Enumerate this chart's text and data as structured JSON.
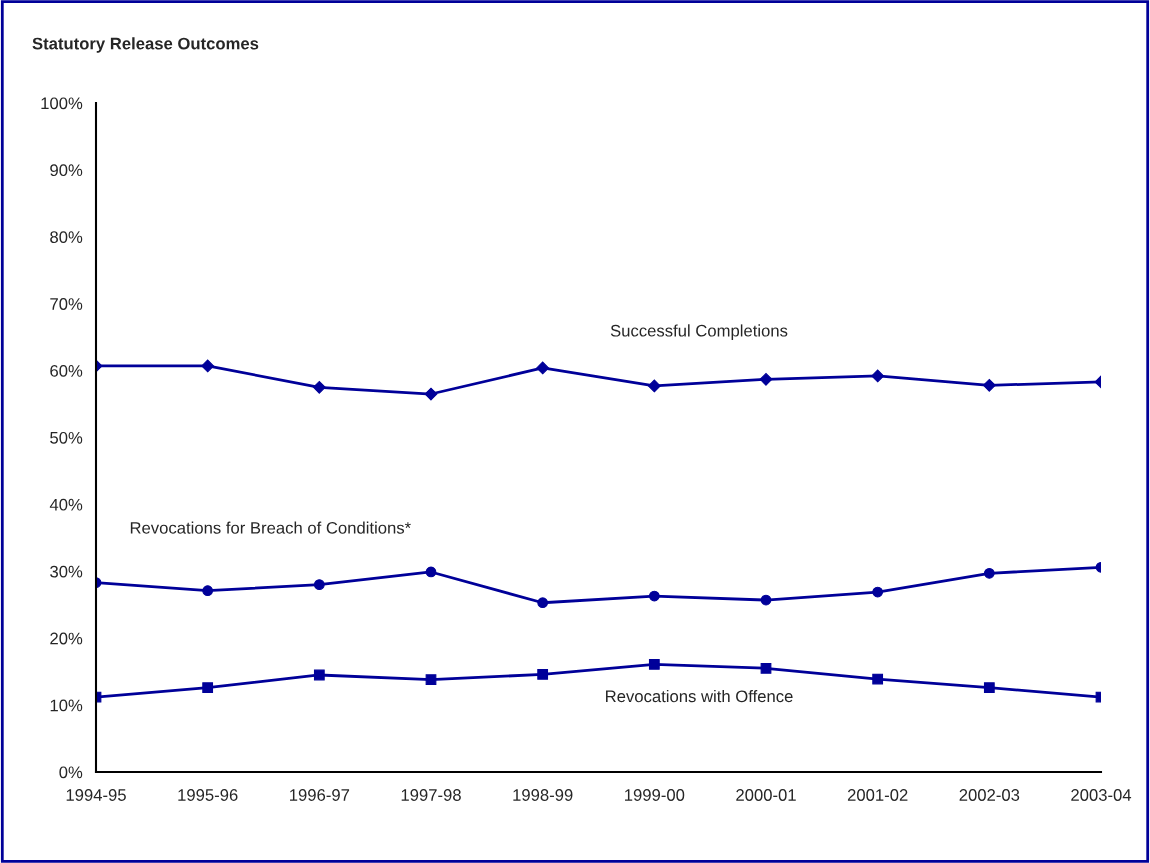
{
  "chart_data": {
    "type": "line",
    "title": "Statutory Release Outcomes",
    "categories": [
      "1994-95",
      "1995-96",
      "1996-97",
      "1997-98",
      "1998-99",
      "1999-00",
      "2000-01",
      "2001-02",
      "2002-03",
      "2003-04"
    ],
    "series": [
      {
        "name": "Successful Completions",
        "color": "#000099",
        "marker": "diamond",
        "values": [
          60.7,
          60.7,
          57.5,
          56.5,
          60.4,
          57.7,
          58.7,
          59.2,
          57.8,
          58.3
        ]
      },
      {
        "name": "Revocations for Breach of Conditions*",
        "color": "#000099",
        "marker": "circle",
        "values": [
          28.3,
          27.1,
          28.0,
          29.9,
          25.3,
          26.3,
          25.7,
          26.9,
          29.7,
          30.6
        ]
      },
      {
        "name": "Revocations with Offence",
        "color": "#000099",
        "marker": "square",
        "values": [
          11.2,
          12.6,
          14.5,
          13.8,
          14.6,
          16.1,
          15.5,
          13.9,
          12.6,
          11.2
        ]
      }
    ],
    "ylim": [
      0,
      100
    ],
    "yticks": [
      {
        "value": 0,
        "label": "0%"
      },
      {
        "value": 10,
        "label": "10%"
      },
      {
        "value": 20,
        "label": "20%"
      },
      {
        "value": 30,
        "label": "30%"
      },
      {
        "value": 40,
        "label": "40%"
      },
      {
        "value": 50,
        "label": "50%"
      },
      {
        "value": 60,
        "label": "60%"
      },
      {
        "value": 70,
        "label": "70%"
      },
      {
        "value": 80,
        "label": "80%"
      },
      {
        "value": 90,
        "label": "90%"
      },
      {
        "value": 100,
        "label": "100%"
      }
    ],
    "grid": false,
    "legend": false,
    "line_style": "solid"
  }
}
